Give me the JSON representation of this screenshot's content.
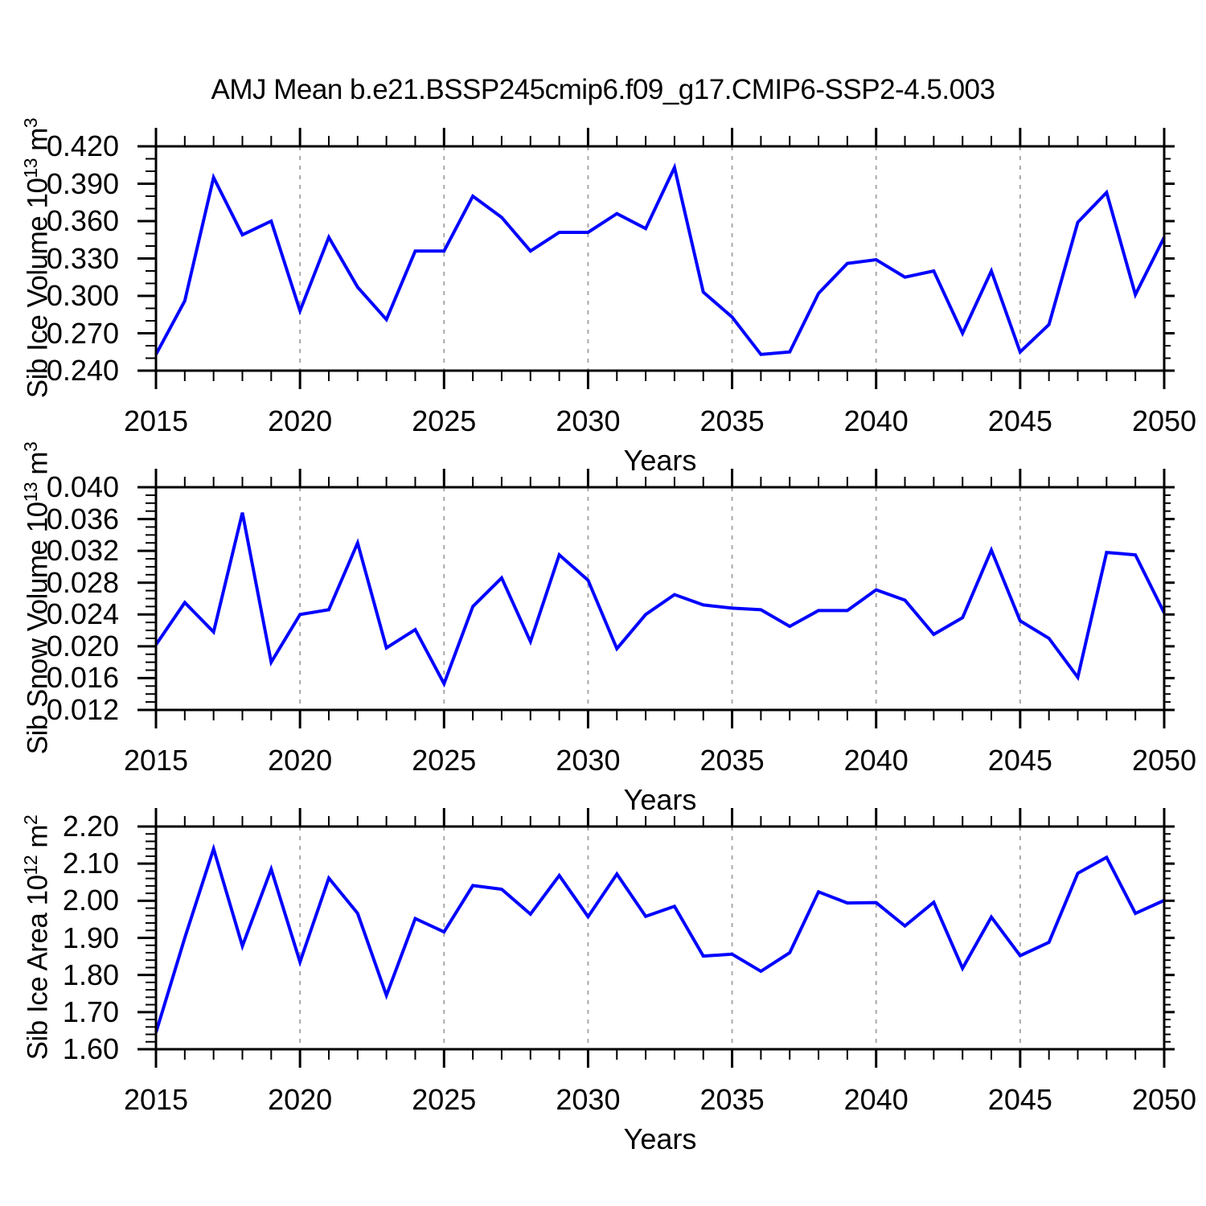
{
  "title": "AMJ Mean b.e21.BSSP245cmip6.f09_g17.CMIP6-SSP2-4.5.003",
  "colors": {
    "line": "#0000ff",
    "grid": "#a8a8a8",
    "axis": "#000000",
    "background": "#ffffff",
    "text": "#000000"
  },
  "chart_data": {
    "type": "line",
    "title": "AMJ Mean b.e21.BSSP245cmip6.f09_g17.CMIP6-SSP2-4.5.003",
    "xlabel": "Years",
    "grid": "vertical-dashed",
    "legend": "none",
    "x": [
      2015,
      2016,
      2017,
      2018,
      2019,
      2020,
      2021,
      2022,
      2023,
      2024,
      2025,
      2026,
      2027,
      2028,
      2029,
      2030,
      2031,
      2032,
      2033,
      2034,
      2035,
      2036,
      2037,
      2038,
      2039,
      2040,
      2041,
      2042,
      2043,
      2044,
      2045,
      2046,
      2047,
      2048,
      2049,
      2050
    ],
    "x_tick_labels": [
      "2015",
      "2020",
      "2025",
      "2030",
      "2035",
      "2040",
      "2045",
      "2050"
    ],
    "x_tick_values": [
      2015,
      2020,
      2025,
      2030,
      2035,
      2040,
      2045,
      2050
    ],
    "gridline_years": [
      2020,
      2025,
      2030,
      2035,
      2040,
      2045
    ],
    "xlim": [
      2015,
      2050
    ],
    "panels": [
      {
        "id": "sib-ice-volume",
        "name": "Sib Ice Volume",
        "ylabel_text": "Sib Ice Volume 10^13 m^3",
        "ylabel_parts": {
          "prefix": "Sib Ice Volume 10",
          "exp": "13",
          "unit": " m",
          "unit_exp": "3"
        },
        "ylim": [
          0.24,
          0.42
        ],
        "ytick_labels": [
          "0.420",
          "0.390",
          "0.360",
          "0.330",
          "0.300",
          "0.270",
          "0.240"
        ],
        "ytick_values": [
          0.42,
          0.39,
          0.36,
          0.33,
          0.3,
          0.27,
          0.24
        ],
        "yminor_step": 0.01,
        "values": [
          0.253,
          0.296,
          0.395,
          0.349,
          0.36,
          0.288,
          0.347,
          0.307,
          0.281,
          0.336,
          0.336,
          0.38,
          0.363,
          0.336,
          0.351,
          0.351,
          0.366,
          0.354,
          0.403,
          0.303,
          0.283,
          0.253,
          0.255,
          0.302,
          0.326,
          0.329,
          0.315,
          0.32,
          0.27,
          0.32,
          0.255,
          0.277,
          0.359,
          0.383,
          0.301,
          0.347
        ]
      },
      {
        "id": "sib-snow-volume",
        "name": "Sib Snow Volume",
        "ylabel_text": "Sib Snow Volume 10^13 m^3",
        "ylabel_parts": {
          "prefix": "Sib Snow Volume 10",
          "exp": "13",
          "unit": " m",
          "unit_exp": "3"
        },
        "ylim": [
          0.012,
          0.04
        ],
        "ytick_labels": [
          "0.040",
          "0.036",
          "0.032",
          "0.028",
          "0.024",
          "0.020",
          "0.016",
          "0.012"
        ],
        "ytick_values": [
          0.04,
          0.036,
          0.032,
          0.028,
          0.024,
          0.02,
          0.016,
          0.012
        ],
        "yminor_step": 0.001,
        "values": [
          0.0202,
          0.0255,
          0.0218,
          0.0368,
          0.018,
          0.024,
          0.0246,
          0.033,
          0.0198,
          0.0221,
          0.0153,
          0.025,
          0.0286,
          0.0206,
          0.0315,
          0.0283,
          0.0197,
          0.024,
          0.0265,
          0.0252,
          0.0248,
          0.0246,
          0.0225,
          0.0245,
          0.0245,
          0.0271,
          0.0258,
          0.0215,
          0.0236,
          0.0321,
          0.0232,
          0.021,
          0.0161,
          0.0318,
          0.0315,
          0.0242
        ]
      },
      {
        "id": "sib-ice-area",
        "name": "Sib Ice Area",
        "ylabel_text": "Sib Ice Area 10^12 m^2",
        "ylabel_parts": {
          "prefix": "Sib Ice Area 10",
          "exp": "12",
          "unit": " m",
          "unit_exp": "2"
        },
        "ylim": [
          1.6,
          2.2
        ],
        "ytick_labels": [
          "2.20",
          "2.10",
          "2.00",
          "1.90",
          "1.80",
          "1.70",
          "1.60"
        ],
        "ytick_values": [
          2.2,
          2.1,
          2.0,
          1.9,
          1.8,
          1.7,
          1.6
        ],
        "yminor_step": 0.02,
        "values": [
          1.645,
          1.9,
          2.14,
          1.878,
          2.085,
          1.835,
          2.061,
          1.966,
          1.745,
          1.952,
          1.916,
          2.041,
          2.031,
          1.964,
          2.068,
          1.957,
          2.072,
          1.958,
          1.985,
          1.851,
          1.856,
          1.81,
          1.86,
          2.024,
          1.994,
          1.995,
          1.932,
          1.996,
          1.818,
          1.956,
          1.852,
          1.888,
          2.074,
          2.117,
          1.966,
          2.001
        ]
      }
    ]
  }
}
